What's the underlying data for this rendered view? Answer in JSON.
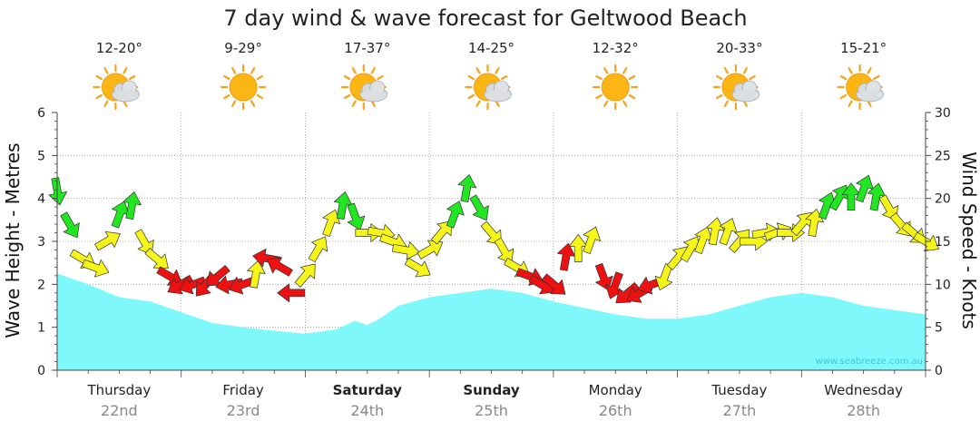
{
  "chart_data": {
    "type": "area",
    "title": "7 day wind & wave forecast for Geltwood Beach",
    "ylabel_left": "Wave Height - Metres",
    "ylabel_right": "Wind Speed - Knots",
    "ylim_left": [
      0,
      6
    ],
    "ylim_right": [
      0,
      30
    ],
    "yticks_left": [
      "0",
      "1",
      "2",
      "3",
      "4",
      "5",
      "6"
    ],
    "yticks_right": [
      "0",
      "5",
      "10",
      "15",
      "20",
      "25",
      "30"
    ],
    "watermark": "www.seabreeze.com.au",
    "days": [
      {
        "name": "Thursday",
        "date": "22nd",
        "temp": "12-20°",
        "weather": "partly-cloudy",
        "bold": false
      },
      {
        "name": "Friday",
        "date": "23rd",
        "temp": "9-29°",
        "weather": "sunny",
        "bold": false
      },
      {
        "name": "Saturday",
        "date": "24th",
        "temp": "17-37°",
        "weather": "partly-cloudy",
        "bold": true
      },
      {
        "name": "Sunday",
        "date": "25th",
        "temp": "14-25°",
        "weather": "partly-cloudy",
        "bold": true
      },
      {
        "name": "Monday",
        "date": "26th",
        "temp": "12-32°",
        "weather": "sunny",
        "bold": false
      },
      {
        "name": "Tuesday",
        "date": "27th",
        "temp": "20-33°",
        "weather": "partly-cloudy",
        "bold": false
      },
      {
        "name": "Wednesday",
        "date": "28th",
        "temp": "15-21°",
        "weather": "partly-cloudy",
        "bold": false
      }
    ],
    "wave_series": {
      "name": "Wave Height",
      "unit": "m",
      "t_days": [
        0,
        0.25,
        0.5,
        0.75,
        1.0,
        1.25,
        1.5,
        1.75,
        2.0,
        2.25,
        2.4,
        2.5,
        2.6,
        2.75,
        3.0,
        3.25,
        3.5,
        3.75,
        4.0,
        4.25,
        4.5,
        4.75,
        5.0,
        5.25,
        5.5,
        5.75,
        6.0,
        6.25,
        6.5,
        6.75,
        7.0
      ],
      "values": [
        2.25,
        2.0,
        1.7,
        1.6,
        1.35,
        1.1,
        1.0,
        0.92,
        0.85,
        0.95,
        1.15,
        1.05,
        1.2,
        1.5,
        1.7,
        1.8,
        1.9,
        1.8,
        1.6,
        1.45,
        1.3,
        1.2,
        1.2,
        1.3,
        1.5,
        1.7,
        1.8,
        1.7,
        1.5,
        1.4,
        1.3
      ]
    },
    "wind_series": {
      "name": "Wind Speed",
      "unit": "knots",
      "color_legend": {
        "green": "#22e622",
        "yellow": "#f5f51a",
        "red": "#ee1111"
      },
      "t_days": [
        0,
        0.1,
        0.2,
        0.3,
        0.4,
        0.5,
        0.6,
        0.7,
        0.8,
        0.9,
        1.0,
        1.1,
        1.2,
        1.3,
        1.4,
        1.5,
        1.6,
        1.7,
        1.8,
        1.9,
        2.0,
        2.1,
        2.2,
        2.3,
        2.4,
        2.5,
        2.6,
        2.7,
        2.8,
        2.9,
        3.0,
        3.1,
        3.2,
        3.3,
        3.4,
        3.5,
        3.6,
        3.7,
        3.8,
        3.9,
        4.0,
        4.1,
        4.2,
        4.3,
        4.4,
        4.5,
        4.6,
        4.7,
        4.8,
        4.9,
        5.0,
        5.1,
        5.2,
        5.3,
        5.4,
        5.5,
        5.6,
        5.7,
        5.8,
        5.9,
        6.0,
        6.1,
        6.2,
        6.3,
        6.4,
        6.5,
        6.6,
        6.7,
        6.8,
        6.9,
        7.0
      ],
      "values": [
        21,
        17,
        13,
        12,
        15,
        18,
        19,
        15,
        13,
        11,
        10,
        10,
        10,
        11,
        10,
        10,
        11,
        13,
        12,
        9,
        11,
        14,
        17,
        19,
        18,
        16,
        16,
        15,
        14,
        12,
        14,
        16,
        18,
        21,
        19,
        16,
        14,
        12,
        11,
        10,
        10,
        13,
        14,
        15,
        11,
        10,
        9,
        9,
        10,
        11,
        13,
        14,
        15,
        16,
        16,
        15,
        15,
        16,
        16,
        16,
        17,
        17,
        19,
        20,
        20,
        21,
        20,
        19,
        17,
        16,
        15
      ],
      "colors": [
        "green",
        "green",
        "yellow",
        "yellow",
        "yellow",
        "green",
        "green",
        "yellow",
        "yellow",
        "red",
        "red",
        "red",
        "red",
        "red",
        "red",
        "red",
        "yellow",
        "red",
        "red",
        "red",
        "yellow",
        "yellow",
        "yellow",
        "green",
        "green",
        "yellow",
        "yellow",
        "yellow",
        "yellow",
        "yellow",
        "yellow",
        "yellow",
        "green",
        "green",
        "green",
        "yellow",
        "yellow",
        "yellow",
        "red",
        "red",
        "red",
        "red",
        "yellow",
        "yellow",
        "red",
        "red",
        "red",
        "red",
        "red",
        "yellow",
        "yellow",
        "yellow",
        "yellow",
        "yellow",
        "yellow",
        "yellow",
        "yellow",
        "yellow",
        "yellow",
        "yellow",
        "yellow",
        "yellow",
        "green",
        "green",
        "green",
        "green",
        "green",
        "yellow",
        "yellow",
        "yellow",
        "yellow"
      ],
      "directions_deg": [
        170,
        150,
        120,
        110,
        60,
        20,
        10,
        150,
        130,
        120,
        240,
        250,
        220,
        230,
        260,
        250,
        10,
        280,
        300,
        270,
        40,
        30,
        20,
        10,
        160,
        90,
        100,
        110,
        100,
        120,
        60,
        40,
        20,
        10,
        150,
        140,
        150,
        120,
        110,
        120,
        130,
        10,
        0,
        20,
        160,
        200,
        230,
        240,
        250,
        200,
        40,
        30,
        20,
        10,
        20,
        40,
        90,
        80,
        70,
        90,
        40,
        10,
        20,
        30,
        0,
        20,
        10,
        150,
        140,
        130,
        120
      ]
    }
  }
}
